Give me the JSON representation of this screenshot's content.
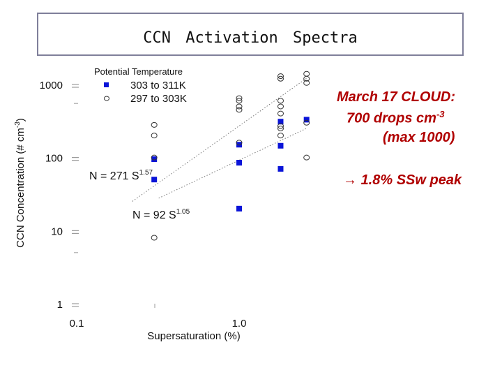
{
  "title": "CCN  Activation  Spectra",
  "annotation": {
    "line1": "March 17 CLOUD:",
    "line2_prefix": "700 drops cm",
    "line2_sup": "-3",
    "line3": "(max 1000)",
    "arrow_symbol": "→",
    "line4": "1.8% SSw peak",
    "color": "#b00000"
  },
  "chart_data": {
    "type": "scatter",
    "x_scale": "log",
    "y_scale": "log",
    "xlim": [
      0.1,
      3
    ],
    "ylim": [
      1,
      2000
    ],
    "xlabel": "Supersaturation (%)",
    "ylabel_main": "CCN Concentration (# cm",
    "ylabel_sup": "-3",
    "ylabel_end": ")",
    "x_ticks": [
      {
        "v": 0.1,
        "label": "0.1"
      },
      {
        "v": 1.0,
        "label": "1.0"
      }
    ],
    "y_ticks": [
      {
        "v": 1,
        "label": "1"
      },
      {
        "v": 10,
        "label": "10"
      },
      {
        "v": 100,
        "label": "100"
      },
      {
        "v": 1000,
        "label": "1000"
      }
    ],
    "legend_title": "Potential Temperature",
    "legend_placement": "top-left",
    "series": [
      {
        "name": "303 to 311K",
        "marker": "filled-square",
        "color": "#0a14d8",
        "points": [
          [
            0.3,
            50
          ],
          [
            0.3,
            95
          ],
          [
            1.0,
            20
          ],
          [
            1.0,
            85
          ],
          [
            1.0,
            150
          ],
          [
            1.0,
            85
          ],
          [
            1.8,
            70
          ],
          [
            1.8,
            145
          ],
          [
            1.8,
            310
          ],
          [
            2.6,
            330
          ]
        ]
      },
      {
        "name": "297 to 303K",
        "marker": "open-circle",
        "color": "#333333",
        "points": [
          [
            0.3,
            8
          ],
          [
            0.3,
            100
          ],
          [
            0.3,
            200
          ],
          [
            0.3,
            280
          ],
          [
            1.0,
            450
          ],
          [
            1.0,
            500
          ],
          [
            1.0,
            600
          ],
          [
            1.0,
            650
          ],
          [
            1.0,
            160
          ],
          [
            1.8,
            1200
          ],
          [
            1.8,
            500
          ],
          [
            1.8,
            600
          ],
          [
            1.8,
            400
          ],
          [
            1.8,
            250
          ],
          [
            1.8,
            270
          ],
          [
            1.8,
            200
          ],
          [
            1.8,
            1300
          ],
          [
            2.6,
            1400
          ],
          [
            2.6,
            1200
          ],
          [
            2.6,
            1050
          ],
          [
            2.6,
            300
          ],
          [
            2.6,
            100
          ]
        ]
      }
    ],
    "fits": [
      {
        "label_prefix": "N = 271 S",
        "label_exp": "1.57",
        "coef": 271,
        "exp": 1.57,
        "x_range": [
          0.22,
          2.6
        ]
      },
      {
        "label_prefix": "N = 92 S",
        "label_exp": "1.05",
        "coef": 92,
        "exp": 1.05,
        "x_range": [
          0.32,
          2.6
        ]
      }
    ]
  }
}
